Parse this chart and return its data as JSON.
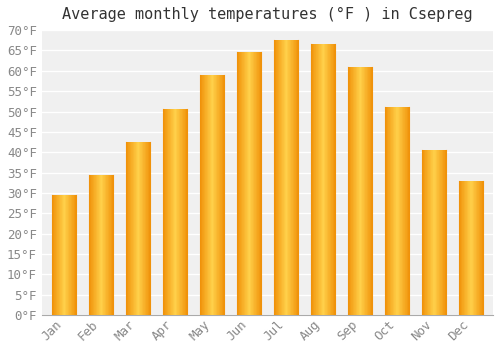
{
  "title": "Average monthly temperatures (°F ) in Csepreg",
  "months": [
    "Jan",
    "Feb",
    "Mar",
    "Apr",
    "May",
    "Jun",
    "Jul",
    "Aug",
    "Sep",
    "Oct",
    "Nov",
    "Dec"
  ],
  "values": [
    29.5,
    34.5,
    42.5,
    50.5,
    59.0,
    64.5,
    67.5,
    66.5,
    61.0,
    51.0,
    40.5,
    33.0
  ],
  "bar_color_center": "#FFD04A",
  "bar_color_edge": "#F0920A",
  "background_color": "#ffffff",
  "plot_bg_color": "#f0f0f0",
  "grid_color": "#ffffff",
  "ylim": [
    0,
    70
  ],
  "title_fontsize": 11,
  "tick_fontsize": 9,
  "font_family": "monospace",
  "tick_color": "#888888",
  "bar_width": 0.65
}
